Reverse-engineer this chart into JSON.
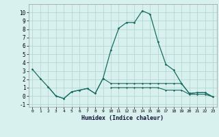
{
  "xlabel": "Humidex (Indice chaleur)",
  "x": [
    0,
    1,
    2,
    3,
    4,
    5,
    6,
    7,
    8,
    9,
    10,
    11,
    12,
    13,
    14,
    15,
    16,
    17,
    18,
    19,
    20,
    21,
    22,
    23
  ],
  "main_line": [
    3.2,
    2.1,
    1.1,
    0.0,
    -0.3,
    0.5,
    0.7,
    0.9,
    0.3,
    2.1,
    5.5,
    8.1,
    8.8,
    8.8,
    10.2,
    9.8,
    6.5,
    3.8,
    3.1,
    1.5,
    0.3,
    0.4,
    0.4,
    -0.1
  ],
  "line2": [
    null,
    null,
    1.1,
    0.0,
    -0.3,
    0.5,
    0.7,
    0.9,
    0.3,
    2.1,
    1.5,
    1.5,
    1.5,
    1.5,
    1.5,
    1.5,
    1.5,
    1.5,
    1.5,
    1.5,
    0.3,
    0.4,
    0.4,
    -0.1
  ],
  "line3": [
    null,
    null,
    null,
    null,
    null,
    null,
    null,
    null,
    null,
    null,
    1.0,
    1.0,
    1.0,
    1.0,
    1.0,
    1.0,
    1.0,
    0.7,
    0.7,
    0.7,
    0.2,
    0.2,
    0.2,
    -0.1
  ],
  "ylim": [
    -1.3,
    11.0
  ],
  "xlim": [
    -0.5,
    23.5
  ],
  "bg_color": "#d8f0ee",
  "grid_color": "#aed4cf",
  "line_color": "#1a6b60",
  "yticks": [
    -1,
    0,
    1,
    2,
    3,
    4,
    5,
    6,
    7,
    8,
    9,
    10
  ],
  "xticks": [
    0,
    1,
    2,
    3,
    4,
    5,
    6,
    7,
    8,
    9,
    10,
    11,
    12,
    13,
    14,
    15,
    16,
    17,
    18,
    19,
    20,
    21,
    22,
    23
  ]
}
